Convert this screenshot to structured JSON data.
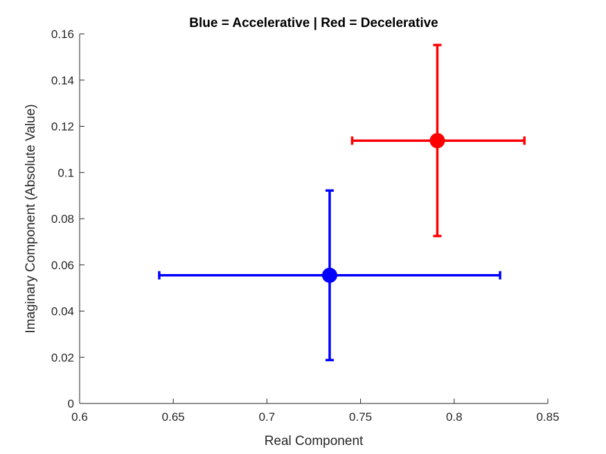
{
  "chart_data": {
    "type": "scatter",
    "title": "Blue = Accelerative | Red = Decelerative",
    "xlabel": "Real Component",
    "ylabel": "Imaginary Component (Absolute Value)",
    "xlim": [
      0.6,
      0.85
    ],
    "ylim": [
      0,
      0.16
    ],
    "xticks": [
      "0.6",
      "0.65",
      "0.7",
      "0.75",
      "0.8",
      "0.85"
    ],
    "yticks": [
      "0",
      "0.02",
      "0.04",
      "0.06",
      "0.08",
      "0.1",
      "0.12",
      "0.14",
      "0.16"
    ],
    "grid": false,
    "series": [
      {
        "color": "#0000ff",
        "x": 0.7335,
        "y": 0.0555,
        "x_err": [
          0.6425,
          0.8245
        ],
        "y_err": [
          0.0188,
          0.0922
        ]
      },
      {
        "color": "#ff0000",
        "x": 0.791,
        "y": 0.1138,
        "x_err": [
          0.7455,
          0.8375
        ],
        "y_err": [
          0.0725,
          0.1552
        ]
      }
    ]
  }
}
